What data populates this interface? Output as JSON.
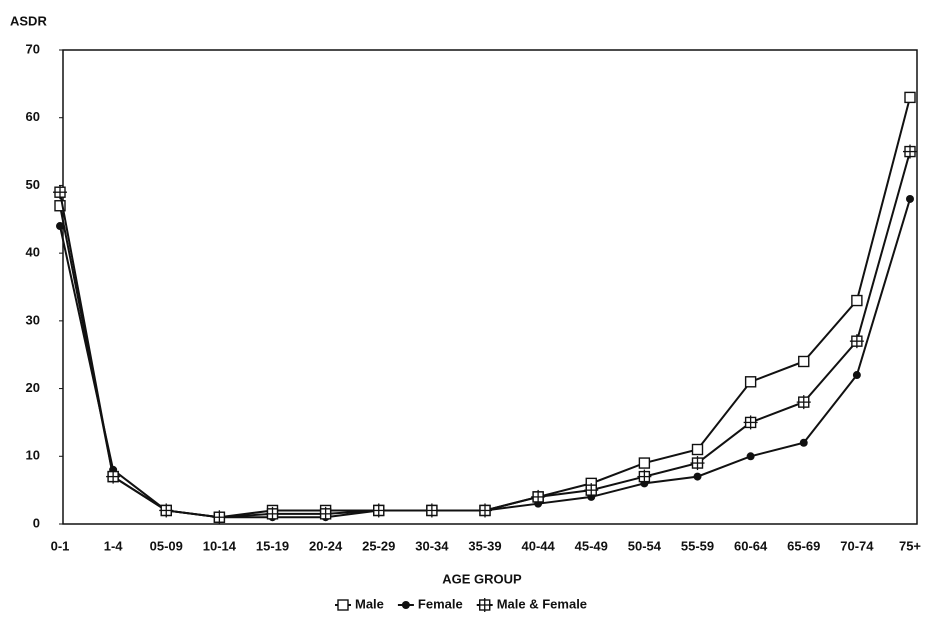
{
  "chart_data": {
    "type": "line",
    "y_label": "ASDR",
    "x_label": "AGE GROUP",
    "categories": [
      "0-1",
      "1-4",
      "05-09",
      "10-14",
      "15-19",
      "20-24",
      "25-29",
      "30-34",
      "35-39",
      "40-44",
      "45-49",
      "50-54",
      "55-59",
      "60-64",
      "65-69",
      "70-74",
      "75+"
    ],
    "series": [
      {
        "name": "Male",
        "color": "#111111",
        "marker": "square",
        "values": [
          47,
          7,
          2,
          1,
          2,
          2,
          2,
          2,
          2,
          4,
          6,
          9,
          11,
          21,
          24,
          33,
          63
        ]
      },
      {
        "name": "Female",
        "color": "#111111",
        "marker": "circle",
        "values": [
          44,
          8,
          2,
          1,
          1,
          1,
          2,
          2,
          2,
          3,
          4,
          6,
          7,
          10,
          12,
          22,
          48
        ]
      },
      {
        "name": "Male & Female",
        "color": "#111111",
        "marker": "cross-square",
        "values": [
          49,
          7,
          2,
          1,
          1.5,
          1.5,
          2,
          2,
          2,
          4,
          5,
          7,
          9,
          15,
          18,
          27,
          55
        ]
      }
    ],
    "ylim": [
      0,
      70
    ],
    "yticks": [
      0,
      10,
      20,
      30,
      40,
      50,
      60,
      70
    ],
    "grid": false,
    "legend": "bottom"
  }
}
